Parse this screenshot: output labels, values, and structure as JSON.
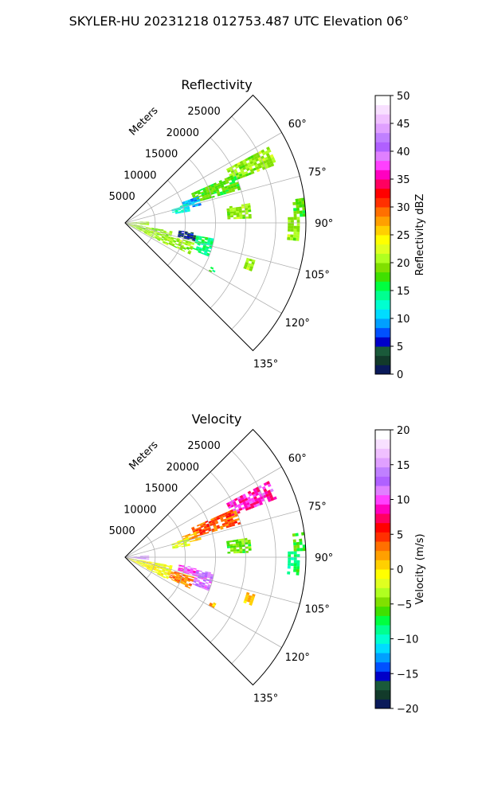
{
  "suptitle": "SKYLER-HU  20231218  012753.487 UTC Elevation 06°",
  "chart_data": [
    {
      "type": "polar_sector",
      "title": "Reflectivity",
      "radial_label": "Meters",
      "rlim": [
        0,
        30000
      ],
      "r_ticks": [
        5000,
        10000,
        15000,
        20000,
        25000
      ],
      "r_tick_labels": [
        "5000",
        "10000",
        "15000",
        "20000",
        "25000"
      ],
      "theta_range_deg": [
        45,
        135
      ],
      "theta_ticks_deg": [
        60,
        75,
        90,
        105,
        120,
        135
      ],
      "theta_tick_labels": [
        "60°",
        "75°",
        "90°",
        "105°",
        "120°",
        "135°"
      ],
      "grid": true,
      "colorbar": {
        "label": "Reflectivity dBZ",
        "range": [
          0,
          50
        ],
        "ticks": [
          0,
          5,
          10,
          15,
          20,
          25,
          30,
          35,
          40,
          45,
          50
        ],
        "tick_labels": [
          "0",
          "5",
          "10",
          "15",
          "20",
          "25",
          "30",
          "35",
          "40",
          "45",
          "50"
        ],
        "colors": [
          "#0a1a5a",
          "#123a2a",
          "#1a5a3a",
          "#0000c8",
          "#0050ff",
          "#00a0ff",
          "#00dcff",
          "#00ffd0",
          "#00ff90",
          "#00ff40",
          "#40e000",
          "#80e000",
          "#b0ff20",
          "#e0ff20",
          "#ffff00",
          "#ffd000",
          "#ffa000",
          "#ff7000",
          "#ff3000",
          "#ff0000",
          "#ff0060",
          "#ff00c0",
          "#ff40ff",
          "#e080ff",
          "#b060ff",
          "#c080ff",
          "#e0a0ff",
          "#f0c0ff",
          "#f8e0ff",
          "#ffffff"
        ]
      },
      "echo_regions": [
        {
          "theta": [
            62,
            69
          ],
          "r": [
            19000,
            27000
          ],
          "value": 20
        },
        {
          "theta": [
            66,
            74
          ],
          "r": [
            12000,
            20000
          ],
          "value": 18
        },
        {
          "theta": [
            70,
            77
          ],
          "r": [
            10000,
            13000
          ],
          "value": 10
        },
        {
          "theta": [
            73,
            80
          ],
          "r": [
            8000,
            11000
          ],
          "value": 12
        },
        {
          "theta": [
            81,
            88
          ],
          "r": [
            17000,
            21000
          ],
          "value": 20
        },
        {
          "theta": [
            88,
            96
          ],
          "r": [
            27000,
            29000
          ],
          "value": 20
        },
        {
          "theta": [
            82,
            88
          ],
          "r": [
            28000,
            30000
          ],
          "value": 18
        },
        {
          "theta": [
            86,
            96
          ],
          "r": [
            0,
            4000
          ],
          "value": 20
        },
        {
          "theta": [
            100,
            118
          ],
          "r": [
            0,
            8000
          ],
          "value": 20
        },
        {
          "theta": [
            106,
            116
          ],
          "r": [
            8000,
            12000
          ],
          "value": 20
        },
        {
          "theta": [
            98,
            105
          ],
          "r": [
            9000,
            12000
          ],
          "value": 5
        },
        {
          "theta": [
            100,
            112
          ],
          "r": [
            12000,
            15000
          ],
          "value": 15
        },
        {
          "theta": [
            106,
            111
          ],
          "r": [
            21000,
            22500
          ],
          "value": 20
        },
        {
          "theta": [
            117,
            120
          ],
          "r": [
            16000,
            17000
          ],
          "value": 15
        }
      ]
    },
    {
      "type": "polar_sector",
      "title": "Velocity",
      "radial_label": "Meters",
      "rlim": [
        0,
        30000
      ],
      "r_ticks": [
        5000,
        10000,
        15000,
        20000,
        25000
      ],
      "r_tick_labels": [
        "5000",
        "10000",
        "15000",
        "20000",
        "25000"
      ],
      "theta_range_deg": [
        45,
        135
      ],
      "theta_ticks_deg": [
        60,
        75,
        90,
        105,
        120,
        135
      ],
      "theta_tick_labels": [
        "60°",
        "75°",
        "90°",
        "105°",
        "120°",
        "135°"
      ],
      "grid": true,
      "colorbar": {
        "label": "Velocity (m/s)",
        "range": [
          -20,
          20
        ],
        "ticks": [
          -20,
          -15,
          -10,
          -5,
          0,
          5,
          10,
          15,
          20
        ],
        "tick_labels": [
          "−20",
          "−15",
          "−10",
          "−5",
          "0",
          "5",
          "10",
          "15",
          "20"
        ],
        "colors": [
          "#0a1a5a",
          "#123a2a",
          "#1a5a3a",
          "#0000c8",
          "#0050ff",
          "#00a0ff",
          "#00dcff",
          "#00ffd0",
          "#00ff90",
          "#00ff40",
          "#40e000",
          "#80e000",
          "#b0ff20",
          "#e0ff20",
          "#ffff00",
          "#ffd000",
          "#ffa000",
          "#ff7000",
          "#ff3000",
          "#ff0000",
          "#ff0060",
          "#ff00c0",
          "#ff40ff",
          "#e080ff",
          "#b060ff",
          "#c080ff",
          "#e0a0ff",
          "#f0c0ff",
          "#f8e0ff",
          "#ffffff"
        ]
      },
      "echo_regions": [
        {
          "theta": [
            62,
            69
          ],
          "r": [
            19000,
            27000
          ],
          "value": 9
        },
        {
          "theta": [
            66,
            74
          ],
          "r": [
            12000,
            20000
          ],
          "value": 4
        },
        {
          "theta": [
            70,
            77
          ],
          "r": [
            10000,
            13000
          ],
          "value": 2
        },
        {
          "theta": [
            73,
            80
          ],
          "r": [
            8000,
            11000
          ],
          "value": -2
        },
        {
          "theta": [
            81,
            88
          ],
          "r": [
            17000,
            21000
          ],
          "value": -5
        },
        {
          "theta": [
            88,
            96
          ],
          "r": [
            27000,
            29000
          ],
          "value": -8
        },
        {
          "theta": [
            82,
            88
          ],
          "r": [
            28000,
            30000
          ],
          "value": -6
        },
        {
          "theta": [
            86,
            96
          ],
          "r": [
            0,
            4000
          ],
          "value": 14
        },
        {
          "theta": [
            100,
            118
          ],
          "r": [
            0,
            8000
          ],
          "value": -1
        },
        {
          "theta": [
            106,
            116
          ],
          "r": [
            8000,
            12000
          ],
          "value": 3
        },
        {
          "theta": [
            98,
            105
          ],
          "r": [
            9000,
            12000
          ],
          "value": 10
        },
        {
          "theta": [
            100,
            112
          ],
          "r": [
            12000,
            15000
          ],
          "value": 12
        },
        {
          "theta": [
            106,
            111
          ],
          "r": [
            21000,
            22500
          ],
          "value": 1
        },
        {
          "theta": [
            117,
            120
          ],
          "r": [
            16000,
            17000
          ],
          "value": 1
        }
      ]
    }
  ]
}
